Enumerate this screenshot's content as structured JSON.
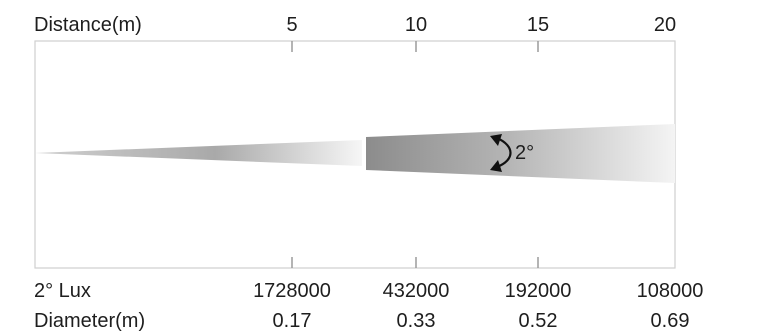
{
  "diagram": {
    "distance_label": "Distance(m)",
    "lux_label": "2° Lux",
    "diameter_label": "Diameter(m)",
    "beam_angle_label": "2°",
    "columns": [
      {
        "distance": "5",
        "lux": "1728000",
        "diameter": "0.17"
      },
      {
        "distance": "10",
        "lux": "432000",
        "diameter": "0.33"
      },
      {
        "distance": "15",
        "lux": "192000",
        "diameter": "0.52"
      },
      {
        "distance": "20",
        "lux": "108000",
        "diameter": "0.69"
      }
    ]
  },
  "colors": {
    "frame": "#cfcfcf",
    "beam_dark": "#8c8c8c",
    "beam_light": "#f4f4f4",
    "text": "#1e1e1e"
  }
}
